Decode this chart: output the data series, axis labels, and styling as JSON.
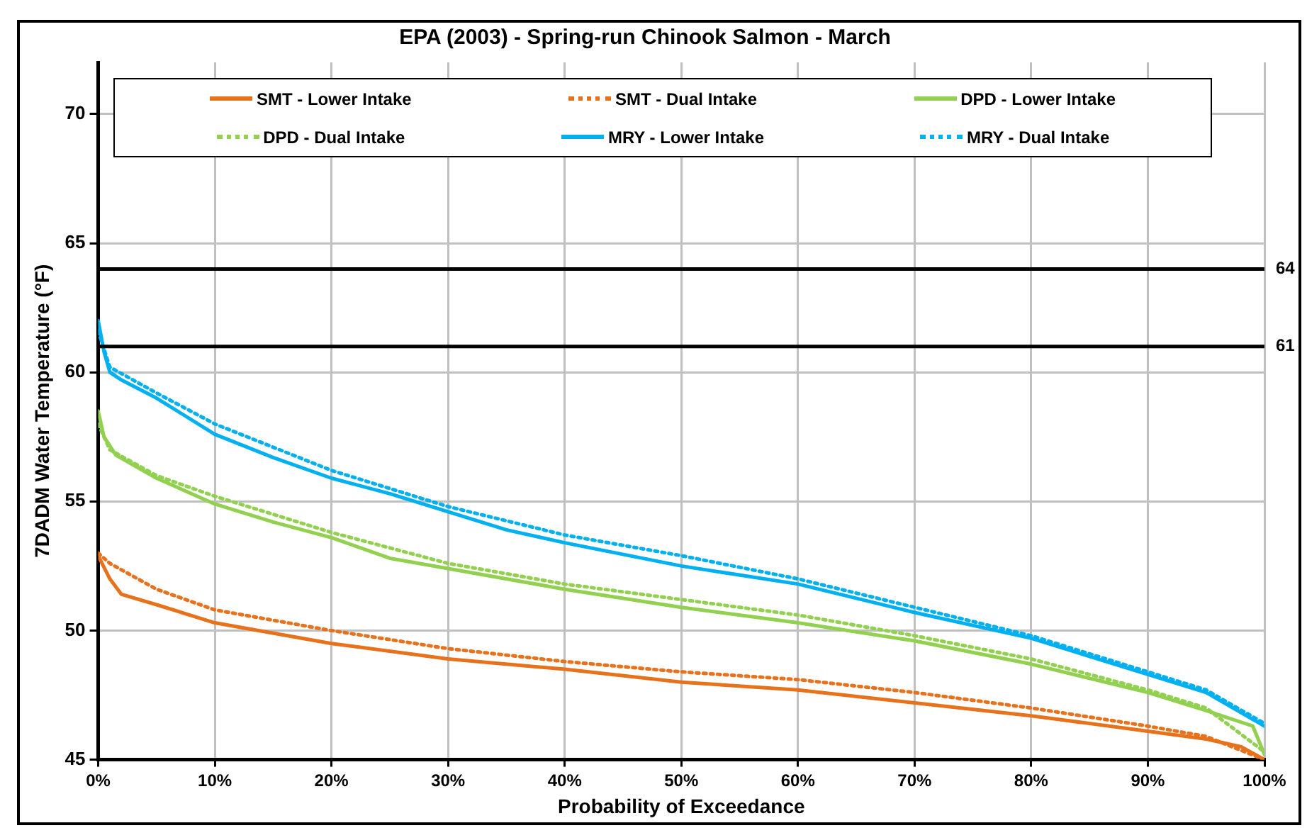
{
  "chart_data": {
    "type": "line",
    "title": "EPA (2003) - Spring-run Chinook Salmon - March",
    "xlabel": "Probability of Exceedance",
    "ylabel": "7DADM Water Temperature (°F)",
    "xlim": [
      0,
      100
    ],
    "xticks": [
      {
        "value": 0,
        "label": "0%"
      },
      {
        "value": 10,
        "label": "10%"
      },
      {
        "value": 20,
        "label": "20%"
      },
      {
        "value": 30,
        "label": "30%"
      },
      {
        "value": 40,
        "label": "40%"
      },
      {
        "value": 50,
        "label": "50%"
      },
      {
        "value": 60,
        "label": "60%"
      },
      {
        "value": 70,
        "label": "70%"
      },
      {
        "value": 80,
        "label": "80%"
      },
      {
        "value": 90,
        "label": "90%"
      },
      {
        "value": 100,
        "label": "100%"
      }
    ],
    "ylim": [
      45,
      72
    ],
    "yticks": [
      45,
      50,
      55,
      60,
      65,
      70
    ],
    "grid": true,
    "legend": "top",
    "marker": "none",
    "ref_lines": [
      {
        "axis": "y",
        "value": 64,
        "label": "64",
        "color": "#000000"
      },
      {
        "axis": "y",
        "value": 61,
        "label": "61",
        "color": "#000000"
      }
    ],
    "series": [
      {
        "name": "SMT - Lower Intake",
        "color": "#e8711c",
        "line_style": "solid",
        "x": [
          0,
          1,
          2,
          5,
          10,
          20,
          30,
          40,
          50,
          60,
          70,
          80,
          90,
          95,
          98,
          100
        ],
        "values": [
          52.9,
          52.0,
          51.4,
          51.0,
          50.3,
          49.5,
          48.9,
          48.5,
          48.0,
          47.7,
          47.2,
          46.7,
          46.1,
          45.8,
          45.5,
          45.0
        ]
      },
      {
        "name": "SMT - Dual Intake",
        "color": "#e8711c",
        "line_style": "dotted",
        "x": [
          0,
          1,
          5,
          10,
          20,
          30,
          40,
          50,
          60,
          70,
          80,
          90,
          95,
          100
        ],
        "values": [
          53.0,
          52.6,
          51.6,
          50.8,
          50.0,
          49.3,
          48.8,
          48.4,
          48.1,
          47.6,
          47.0,
          46.3,
          45.9,
          45.0
        ]
      },
      {
        "name": "DPD - Lower Intake",
        "color": "#92d050",
        "line_style": "solid",
        "x": [
          0,
          0.5,
          1.5,
          5,
          10,
          15,
          20,
          25,
          30,
          40,
          50,
          60,
          70,
          80,
          90,
          95,
          99,
          100
        ],
        "values": [
          58.5,
          57.5,
          56.8,
          55.9,
          54.9,
          54.2,
          53.6,
          52.8,
          52.4,
          51.6,
          50.9,
          50.3,
          49.6,
          48.7,
          47.6,
          46.9,
          46.3,
          45.2
        ]
      },
      {
        "name": "DPD - Dual Intake",
        "color": "#92d050",
        "line_style": "dotted",
        "x": [
          0,
          1,
          5,
          10,
          20,
          30,
          40,
          50,
          60,
          70,
          80,
          90,
          95,
          100
        ],
        "values": [
          58.0,
          57.0,
          56.0,
          55.2,
          53.8,
          52.6,
          51.8,
          51.2,
          50.6,
          49.8,
          48.9,
          47.7,
          47.0,
          45.3
        ]
      },
      {
        "name": "MRY - Lower Intake",
        "color": "#00b0f0",
        "line_style": "solid",
        "x": [
          0,
          0.5,
          1,
          2,
          5,
          10,
          15,
          20,
          25,
          30,
          35,
          40,
          50,
          60,
          70,
          80,
          90,
          95,
          100
        ],
        "values": [
          62.0,
          60.8,
          60.0,
          59.7,
          59.0,
          57.6,
          56.7,
          55.9,
          55.3,
          54.6,
          53.9,
          53.4,
          52.5,
          51.8,
          50.7,
          49.7,
          48.3,
          47.6,
          46.3
        ]
      },
      {
        "name": "MRY - Dual Intake",
        "color": "#00b0f0",
        "line_style": "dotted",
        "x": [
          0,
          1,
          5,
          10,
          20,
          30,
          40,
          50,
          60,
          70,
          80,
          90,
          95,
          100
        ],
        "values": [
          61.6,
          60.2,
          59.2,
          58.0,
          56.2,
          54.8,
          53.7,
          52.9,
          52.0,
          50.9,
          49.8,
          48.4,
          47.7,
          46.4
        ]
      }
    ]
  }
}
